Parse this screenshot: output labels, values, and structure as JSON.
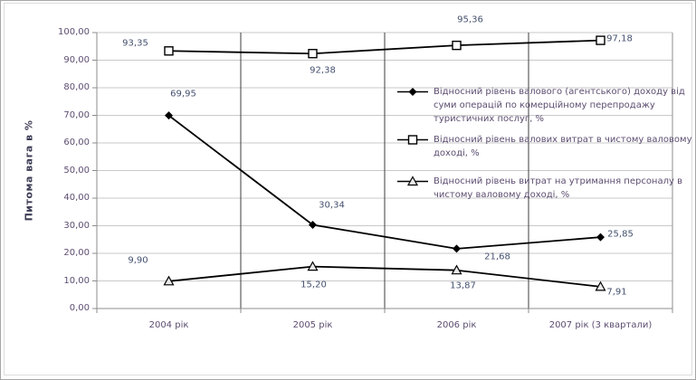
{
  "chart_data": {
    "type": "line",
    "title": "",
    "xlabel": "",
    "ylabel": "Питома вага в %",
    "ylim": [
      0,
      100
    ],
    "y_tick_step": 10,
    "y_ticks": [
      "0,00",
      "10,00",
      "20,00",
      "30,00",
      "40,00",
      "50,00",
      "60,00",
      "70,00",
      "80,00",
      "90,00",
      "100,00"
    ],
    "categories": [
      "2004 рік",
      "2005 рік",
      "2006 рік",
      "2007 рік (3 квартали)"
    ],
    "grid": "horizontal gridlines + dark vertical category separators",
    "legend_position": "overlay right of plot, transparent background",
    "series": [
      {
        "name": "Відносний рівень валового (агентського) доходу від суми операцій по комерційному перепродажу туристичних послуг, %",
        "marker": "diamond-filled",
        "values": [
          69.95,
          30.34,
          21.68,
          25.85
        ],
        "labels": [
          "69,95",
          "30,34",
          "21,68",
          "25,85"
        ]
      },
      {
        "name": "Відносний рівень валових витрат в чистому валовому доході, %",
        "marker": "square-open",
        "values": [
          93.35,
          92.38,
          95.36,
          97.18
        ],
        "labels": [
          "93,35",
          "92,38",
          "95,36",
          "97,18"
        ]
      },
      {
        "name": "Відносний рівень витрат на утримання персоналу в чистому валовому доході, %",
        "marker": "triangle-open",
        "values": [
          9.9,
          15.2,
          13.87,
          7.91
        ],
        "labels": [
          "9,90",
          "15,20",
          "13,87",
          "7,91"
        ]
      }
    ],
    "colors": {
      "line": "#000000",
      "grid": "#c9c9c9",
      "axis": "#8c8c8c",
      "separator": "#3d3d3d",
      "tick_text": "#5c4d70",
      "category_text": "#5c4d70",
      "data_label_text": "#44506e",
      "legend_text": "#5c4d70",
      "y_title_text": "#3c3c55",
      "marker_fill_open": "#ffffff",
      "marker_fill_triangle": "#e9e9e9",
      "background": "#ffffff"
    }
  }
}
